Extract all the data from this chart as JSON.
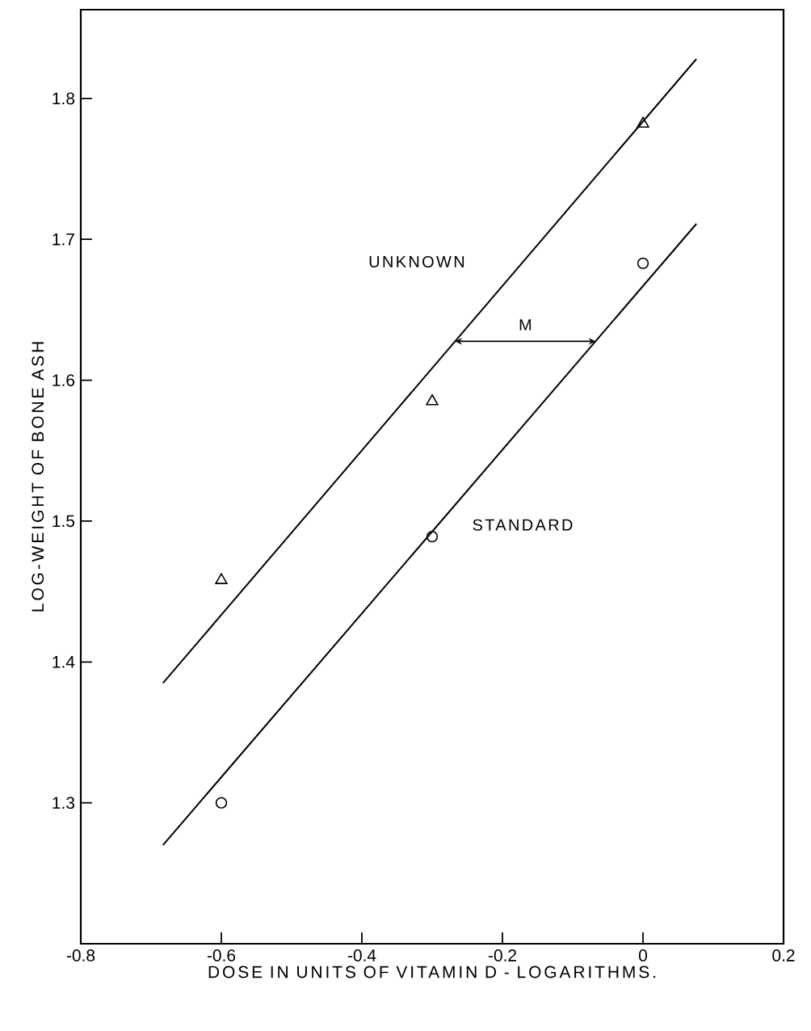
{
  "chart_data": {
    "type": "scatter",
    "xlabel": "DOSE IN UNITS OF VITAMIN D - LOGARITHMS.",
    "ylabel": "LOG-WEIGHT OF BONE ASH",
    "xlim": [
      -0.8,
      0.2
    ],
    "ylim": [
      1.2,
      1.863
    ],
    "xticks": [
      -0.8,
      -0.6,
      -0.4,
      -0.2,
      {
        "value": 0,
        "label": "0"
      },
      {
        "value": 0.2,
        "label": "0.2"
      }
    ],
    "yticks": [
      1.3,
      1.4,
      1.5,
      1.6,
      1.7,
      1.8
    ],
    "series": [
      {
        "marker": "triangle",
        "color": "#000000",
        "x": [
          -0.6,
          -0.3,
          0
        ],
        "values": [
          1.458,
          1.585,
          1.782
        ]
      },
      {
        "name": "UNKNOWN",
        "type": "line",
        "color": "#000000",
        "x": [
          -0.683,
          0.076
        ],
        "values": [
          1.385,
          1.828
        ]
      },
      {
        "marker": "circle",
        "color": "#000000",
        "x": [
          -0.6,
          -0.3,
          0
        ],
        "values": [
          1.3,
          1.489,
          1.683
        ]
      },
      {
        "name": "STANDARD",
        "type": "line",
        "color": "#000000",
        "x": [
          -0.683,
          0.076
        ],
        "values": [
          1.27,
          1.711
        ]
      }
    ],
    "annotations": [
      "M"
    ]
  }
}
